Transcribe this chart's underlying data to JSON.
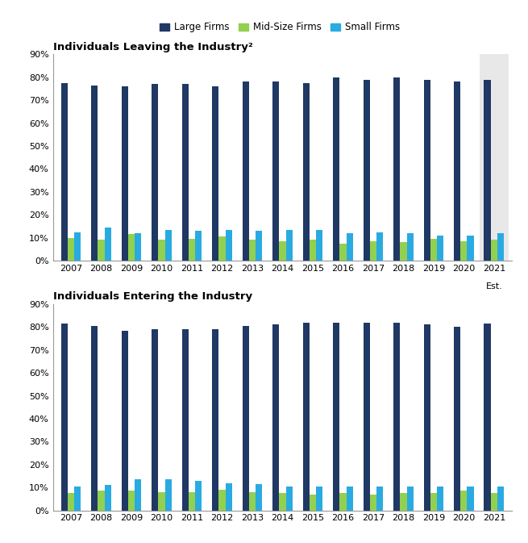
{
  "years": [
    2007,
    2008,
    2009,
    2010,
    2011,
    2012,
    2013,
    2014,
    2015,
    2016,
    2017,
    2018,
    2019,
    2020,
    2021
  ],
  "leaving": {
    "large": [
      77.5,
      76.5,
      76,
      77,
      77,
      76,
      78,
      78,
      77.5,
      80,
      79,
      80,
      79,
      78,
      79
    ],
    "mid": [
      10,
      9,
      11.5,
      9,
      9.5,
      10.5,
      9,
      8.5,
      9,
      7.5,
      8.5,
      8,
      9.5,
      8.5,
      9
    ],
    "small": [
      12.5,
      14.5,
      12,
      13.5,
      13,
      13.5,
      13,
      13.5,
      13.5,
      12,
      12.5,
      12,
      11,
      11,
      12
    ]
  },
  "entering": {
    "large": [
      81.5,
      80.5,
      78.5,
      79,
      79,
      79,
      80.5,
      81,
      82,
      82,
      82,
      82,
      81,
      80,
      81.5
    ],
    "mid": [
      7.5,
      8.5,
      8.5,
      8,
      8,
      9,
      8,
      7.5,
      7,
      7.5,
      7,
      7.5,
      7.5,
      8.5,
      7.5
    ],
    "small": [
      10.5,
      11,
      13.5,
      13.5,
      13,
      12,
      11.5,
      10.5,
      10.5,
      10.5,
      10.5,
      10.5,
      10.5,
      10.5,
      10.5
    ]
  },
  "colors": {
    "large": "#1F3864",
    "mid": "#92D050",
    "small": "#29ABE2"
  },
  "legend_labels": [
    "Large Firms",
    "Mid-Size Firms",
    "Small Firms"
  ],
  "title_leaving": "Individuals Leaving the Industry²",
  "title_entering": "Individuals Entering the Industry",
  "highlight_2021_bg": "#E8E8E8",
  "bar_width": 0.22,
  "ylim": [
    0,
    90
  ],
  "yticks": [
    0,
    10,
    20,
    30,
    40,
    50,
    60,
    70,
    80,
    90
  ],
  "yticklabels": [
    "0%",
    "10%",
    "20%",
    "30%",
    "40%",
    "50%",
    "60%",
    "70%",
    "80%",
    "90%"
  ]
}
